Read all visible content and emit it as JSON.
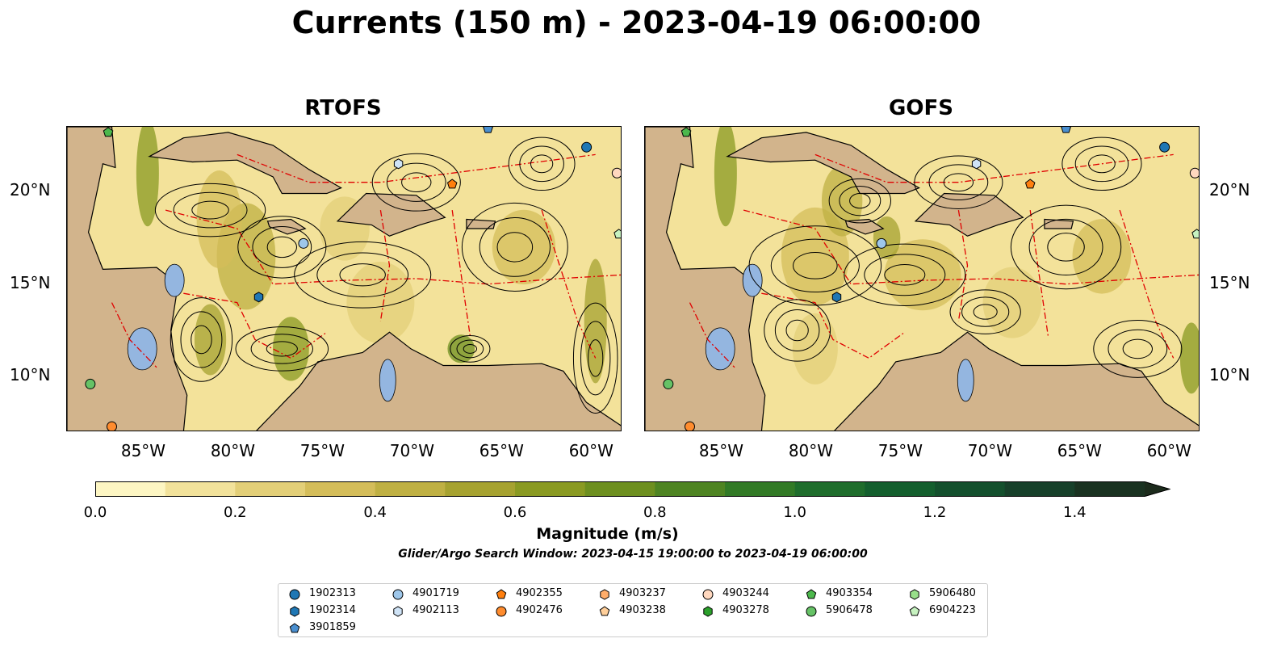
{
  "figure": {
    "title": "Currents (150 m) - 2023-04-19 06:00:00"
  },
  "panels": [
    {
      "title": "RTOFS"
    },
    {
      "title": "GOFS"
    }
  ],
  "axes": {
    "x_ticks": [
      "85°W",
      "80°W",
      "75°W",
      "70°W",
      "65°W",
      "60°W"
    ],
    "y_ticks": [
      "20°N",
      "15°N",
      "10°N"
    ],
    "lon_range": [
      -89.5,
      -58.5
    ],
    "lat_range": [
      7,
      23.5
    ]
  },
  "colorbar": {
    "label": "Magnitude (m/s)",
    "ticks": [
      "0.0",
      "0.2",
      "0.4",
      "0.6",
      "0.8",
      "1.0",
      "1.2",
      "1.4"
    ],
    "range": [
      0,
      1.5
    ],
    "step": 0.1,
    "extend": "max",
    "colors": [
      "#fdf6c3",
      "#f2e29b",
      "#e3cf78",
      "#d4bd5a",
      "#bfb043",
      "#a6a230",
      "#8a9a22",
      "#6d8f1f",
      "#4e8422",
      "#327a26",
      "#1f6d2c",
      "#145f2e",
      "#14502d",
      "#17402a",
      "#1a3221",
      "#1c2b1c"
    ]
  },
  "search_window": "Glider/Argo Search Window: 2023-04-15 19:00:00 to 2023-04-19 06:00:00",
  "legend": {
    "placement": "bottom-center",
    "items": [
      {
        "id": "1902313",
        "marker": "circle",
        "color": "#1f77b4"
      },
      {
        "id": "1902314",
        "marker": "hexagon",
        "color": "#1f77b4"
      },
      {
        "id": "3901859",
        "marker": "pentagon",
        "color": "#4a8fd0"
      },
      {
        "id": "4901719",
        "marker": "circle",
        "color": "#9ec7ea"
      },
      {
        "id": "4902113",
        "marker": "hexagon",
        "color": "#cfe3f6"
      },
      {
        "id": "4902355",
        "marker": "pentagon",
        "color": "#ff7f0e"
      },
      {
        "id": "4902476",
        "marker": "circle",
        "color": "#ff8c2e"
      },
      {
        "id": "4903237",
        "marker": "hexagon",
        "color": "#ffad6a"
      },
      {
        "id": "4903238",
        "marker": "pentagon",
        "color": "#ffcf9a"
      },
      {
        "id": "4903244",
        "marker": "circle",
        "color": "#ffd8bf"
      },
      {
        "id": "4903278",
        "marker": "hexagon",
        "color": "#2ca02c"
      },
      {
        "id": "4903354",
        "marker": "pentagon",
        "color": "#4cb84c"
      },
      {
        "id": "5906478",
        "marker": "circle",
        "color": "#66c266"
      },
      {
        "id": "5906480",
        "marker": "hexagon",
        "color": "#98df8a"
      },
      {
        "id": "6904223",
        "marker": "pentagon",
        "color": "#c7f2c0"
      }
    ]
  }
}
